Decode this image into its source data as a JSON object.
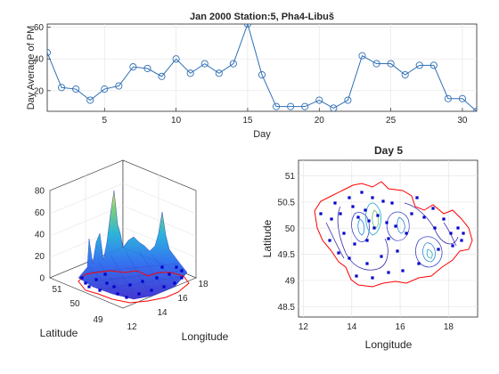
{
  "figure": {
    "colors": {
      "line": "#2f6fb5",
      "border": "#ff0000",
      "stations": "#0000cc",
      "grid": "#e6e6e6",
      "axis": "#262626"
    }
  },
  "chart_data": [
    {
      "type": "line",
      "title": "Jan 2000 Station:5, Pha4-Libuš",
      "xlabel": "Day",
      "ylabel": "Day Average of PM",
      "xlim": [
        1,
        31
      ],
      "ylim": [
        7,
        62
      ],
      "x_ticks": [
        "5",
        "10",
        "15",
        "20",
        "25",
        "30"
      ],
      "y_ticks": [
        "20",
        "40",
        "60"
      ],
      "marker": "circle",
      "grid": true,
      "x": [
        1,
        2,
        3,
        4,
        5,
        6,
        7,
        8,
        9,
        10,
        11,
        12,
        13,
        14,
        15,
        16,
        17,
        18,
        19,
        20,
        21,
        22,
        23,
        24,
        25,
        26,
        27,
        28,
        29,
        30,
        31
      ],
      "values": [
        44,
        22,
        21,
        14,
        21,
        23,
        35,
        34,
        29,
        40,
        31,
        37,
        31,
        37,
        62,
        30,
        10,
        10,
        10,
        14,
        9,
        14,
        42,
        37,
        37,
        30,
        36,
        36,
        15,
        15,
        7
      ]
    },
    {
      "type": "surface",
      "title": "",
      "xlabel": "Longitude",
      "ylabel": "Latitude",
      "zlim": [
        0,
        80
      ],
      "z_ticks": [
        "0",
        "20",
        "40",
        "60",
        "80"
      ],
      "x_ticks": [
        "12",
        "14",
        "16",
        "18"
      ],
      "y_ticks": [
        "49",
        "50",
        "51"
      ],
      "grid": true,
      "peaks": [
        {
          "lon": 14.4,
          "lat": 50.1,
          "value": 75
        },
        {
          "lon": 14.6,
          "lat": 50.3,
          "value": 60
        },
        {
          "lon": 16.5,
          "lat": 50.5,
          "value": 52
        },
        {
          "lon": 17.2,
          "lat": 49.7,
          "value": 42
        }
      ]
    },
    {
      "type": "contour",
      "title": "Day 5",
      "xlabel": "Longitude",
      "ylabel": "Latitude",
      "xlim": [
        11.8,
        19.2
      ],
      "ylim": [
        48.3,
        51.3
      ],
      "x_ticks": [
        "12",
        "14",
        "16",
        "18"
      ],
      "y_ticks": [
        "48.5",
        "49",
        "49.5",
        "50",
        "50.5",
        "51"
      ],
      "grid": true
    }
  ]
}
